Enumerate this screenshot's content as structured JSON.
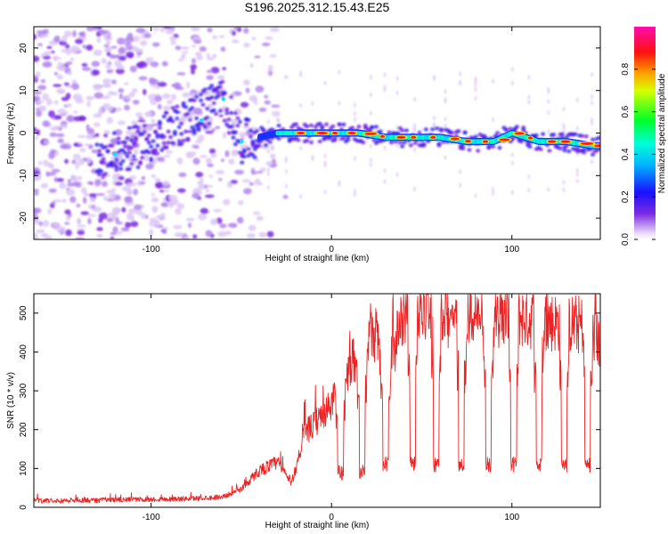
{
  "figure_title": "S196.2025.312.15.43.E25",
  "chart_data": [
    {
      "type": "heatmap",
      "title": "S196.2025.312.15.43.E25",
      "xlabel": "Height of straight line (km)",
      "ylabel": "Frequency (Hz)",
      "xlim": [
        -165,
        149
      ],
      "ylim": [
        -25,
        25
      ],
      "xticks": [
        -100,
        0,
        100
      ],
      "yticks": [
        -20,
        -10,
        0,
        10,
        20
      ],
      "colorbar": {
        "label": "Normalized spectral amplitude",
        "range": [
          0,
          1
        ],
        "ticks": [
          0.0,
          0.2,
          0.4,
          0.6,
          0.8
        ],
        "tick_labels": [
          "0.0",
          "0.2",
          "0.4",
          "0.6",
          "0.8"
        ],
        "colormap": "rainbow (white-violet-blue-cyan-green-yellow-red-magenta)"
      },
      "ridge": {
        "description": "dominant frequency track",
        "x": [
          -120,
          -100,
          -80,
          -70,
          -60,
          -50,
          -40,
          -30,
          -20,
          -10,
          0,
          15,
          30,
          45,
          60,
          75,
          90,
          100,
          115,
          130,
          145
        ],
        "y": [
          -5,
          -2,
          3,
          6,
          8,
          -2,
          -1,
          0,
          0,
          0,
          0,
          0,
          -1,
          -1,
          -1,
          -2,
          -2,
          0,
          -2,
          -2,
          -3
        ]
      },
      "noise_region": [
        -165,
        -40
      ]
    },
    {
      "type": "line",
      "xlabel": "Height of straight line (km)",
      "ylabel": "SNR (10 * v/v)",
      "xlim": [
        -165,
        149
      ],
      "ylim": [
        0,
        550
      ],
      "xticks": [
        -100,
        0,
        100
      ],
      "yticks": [
        0,
        100,
        200,
        300,
        400,
        500
      ],
      "series": [
        {
          "name": "SNR",
          "color": "#ee2222",
          "profile_x": [
            -165,
            -120,
            -80,
            -60,
            -50,
            -40,
            -30,
            -22,
            -15,
            -8,
            0,
            8,
            15,
            25,
            30,
            40,
            50,
            60,
            70,
            80,
            90,
            100,
            110,
            120,
            130,
            140,
            149
          ],
          "profile_y": [
            15,
            17,
            20,
            25,
            45,
            90,
            110,
            60,
            180,
            210,
            250,
            330,
            380,
            420,
            320,
            470,
            480,
            470,
            460,
            470,
            450,
            470,
            460,
            455,
            450,
            445,
            400
          ],
          "dips_x": [
            5,
            17,
            30,
            45,
            58,
            72,
            87,
            101,
            115,
            129,
            142
          ]
        }
      ]
    }
  ]
}
